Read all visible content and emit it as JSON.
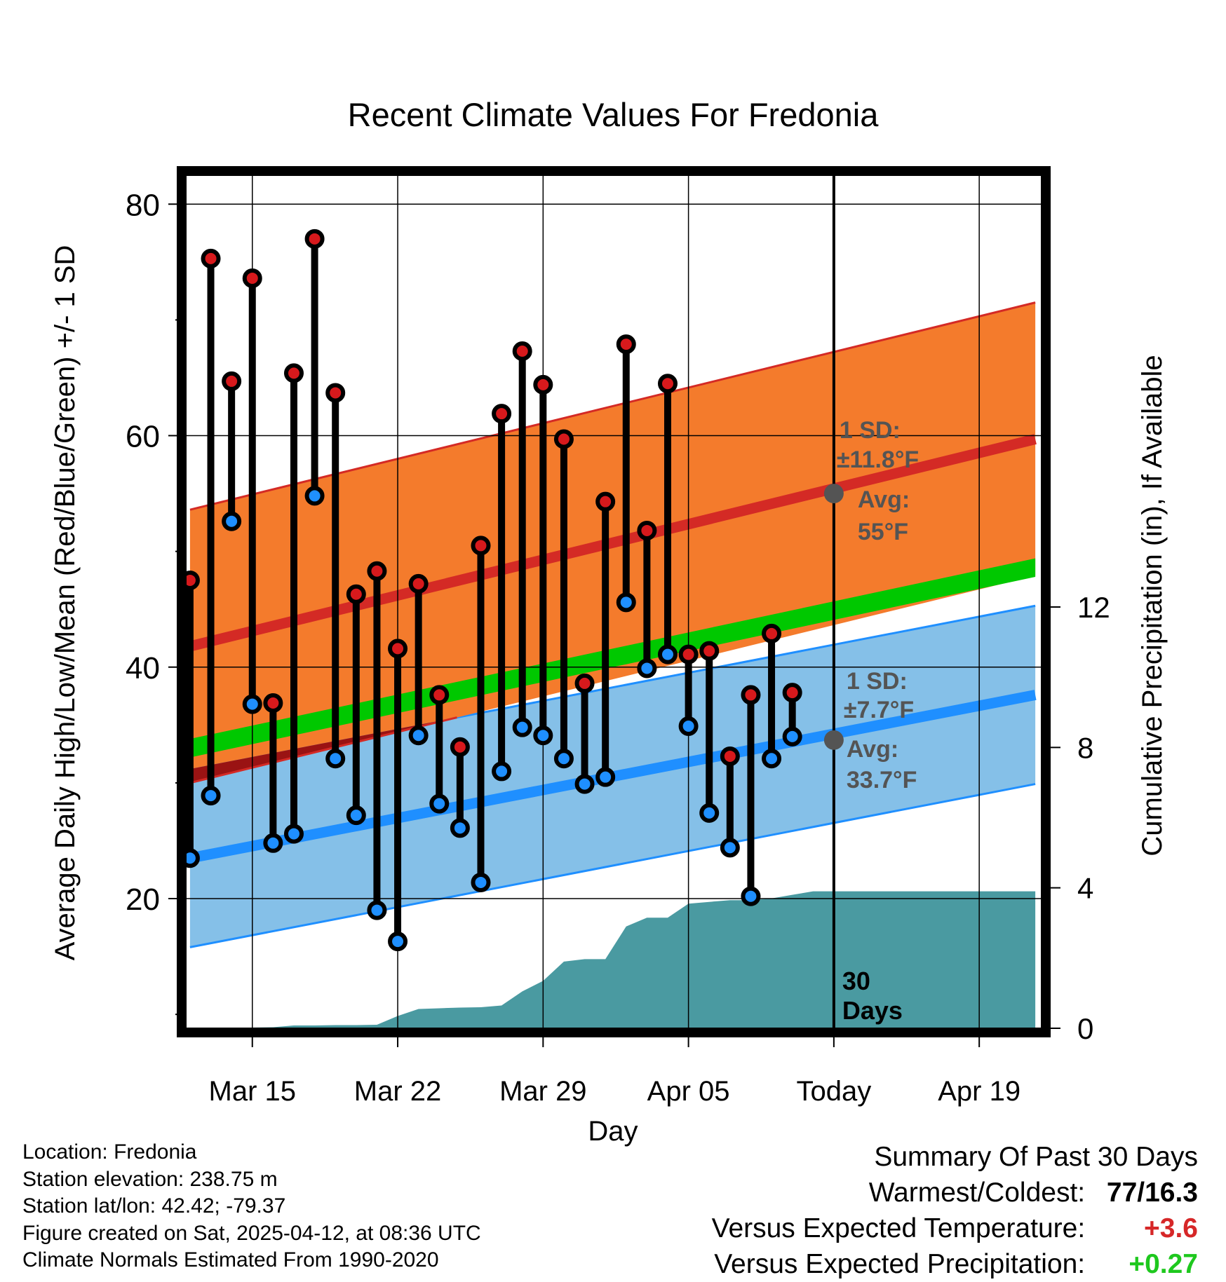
{
  "chart_data": {
    "type": "line",
    "title": "Recent Climate Values For Fredonia",
    "xlabel": "Day",
    "ylabel": "Average Daily High/Low/Mean (Red/Blue/Green) +/- 1 SD",
    "ylabel_right": "Cumulative Precipitation (in), If Available",
    "x_ticks": [
      {
        "day": 3,
        "label": "Mar 15"
      },
      {
        "day": 10,
        "label": "Mar 22"
      },
      {
        "day": 17,
        "label": "Mar 29"
      },
      {
        "day": 24,
        "label": "Apr 05"
      },
      {
        "day": 31,
        "label": "Today"
      },
      {
        "day": 38,
        "label": "Apr 19"
      }
    ],
    "xlim": [
      -0.2,
      41
    ],
    "ylim": [
      8.8,
      82.5
    ],
    "y_ticks": [
      20,
      40,
      60,
      80
    ],
    "y_minor_ticks": [
      10,
      30,
      50,
      70
    ],
    "precip_ylim": [
      0,
      24.3
    ],
    "precip_ticks": [
      0,
      4,
      8,
      12
    ],
    "today_day": 31,
    "today_label_lines": [
      "30",
      "Days"
    ],
    "normals": {
      "x_range": [
        0,
        40.7
      ],
      "high_avg": [
        41.8,
        59.7
      ],
      "high_sd": 11.8,
      "low_avg": [
        23.5,
        37.6
      ],
      "low_sd": 7.7,
      "mean_avg": [
        33.0,
        48.6
      ]
    },
    "annotations": {
      "high_sd": [
        "1 SD:",
        "±11.8°F"
      ],
      "high_avg": [
        "Avg:",
        "55°F"
      ],
      "high_avg_value": 55,
      "low_sd": [
        "1 SD:",
        "±7.7°F"
      ],
      "low_avg": [
        "Avg:",
        "33.7°F"
      ],
      "low_avg_value": 33.7
    },
    "series": [
      {
        "name": "Daily High",
        "color": "#d7191c",
        "values": [
          47.5,
          75.3,
          64.7,
          73.6,
          36.9,
          65.4,
          77.0,
          63.7,
          46.3,
          48.3,
          41.6,
          47.2,
          37.6,
          33.1,
          50.5,
          61.9,
          67.3,
          64.4,
          59.7,
          38.6,
          54.3,
          67.9,
          51.8,
          64.5,
          41.1,
          41.4,
          32.3,
          37.6,
          42.9,
          37.8
        ]
      },
      {
        "name": "Daily Low",
        "color": "#1f8fff",
        "values": [
          23.5,
          28.9,
          52.6,
          36.8,
          24.8,
          25.6,
          54.8,
          32.1,
          27.2,
          19.0,
          16.3,
          34.1,
          28.2,
          26.1,
          21.4,
          31.0,
          34.8,
          34.1,
          32.1,
          29.9,
          30.5,
          45.6,
          39.9,
          41.1,
          34.9,
          27.4,
          24.4,
          20.2,
          32.1,
          34.0
        ]
      },
      {
        "name": "Cumulative Precipitation",
        "values": [
          [
            0,
            0
          ],
          [
            2,
            0
          ],
          [
            3,
            0.02
          ],
          [
            4,
            0.03
          ],
          [
            5,
            0.08
          ],
          [
            6,
            0.08
          ],
          [
            7,
            0.09
          ],
          [
            8,
            0.09
          ],
          [
            9,
            0.1
          ],
          [
            10,
            0.35
          ],
          [
            11,
            0.55
          ],
          [
            12,
            0.57
          ],
          [
            13,
            0.59
          ],
          [
            14,
            0.6
          ],
          [
            15,
            0.65
          ],
          [
            16,
            1.05
          ],
          [
            17,
            1.35
          ],
          [
            18,
            1.9
          ],
          [
            19,
            1.97
          ],
          [
            20,
            1.97
          ],
          [
            21,
            2.9
          ],
          [
            22,
            3.15
          ],
          [
            23,
            3.15
          ],
          [
            24,
            3.55
          ],
          [
            25,
            3.6
          ],
          [
            26,
            3.65
          ],
          [
            27,
            3.65
          ],
          [
            28,
            3.7
          ],
          [
            29,
            3.8
          ],
          [
            30,
            3.9
          ],
          [
            31,
            3.9
          ],
          [
            40.7,
            3.9
          ]
        ]
      }
    ]
  },
  "info": {
    "location": "Location: Fredonia",
    "elevation": "Station elevation: 238.75 m",
    "latlon": "Station lat/lon: 42.42; -79.37",
    "created": "Figure created on Sat, 2025-04-12, at 08:36 UTC",
    "normals": "Climate Normals Estimated From 1990-2020"
  },
  "summary": {
    "heading": "Summary Of Past 30 Days",
    "warmest_coldest_label": "Warmest/Coldest:",
    "warmest_coldest_value": "77/16.3",
    "temp_label": "Versus Expected Temperature:",
    "temp_value": "+3.6",
    "temp_color": "#d62728",
    "precip_label": "Versus Expected Precipitation:",
    "precip_value": "+0.27",
    "precip_color": "#1ec81e"
  },
  "colors": {
    "high_band": "#f47b2c",
    "high_line": "#d42a25",
    "low_band": "#85c0e8",
    "low_line": "#1f8fff",
    "mean_band": "#00c800",
    "overlap": "#9a1313",
    "precip": "#4a9aa1",
    "annotation": "#545454"
  }
}
